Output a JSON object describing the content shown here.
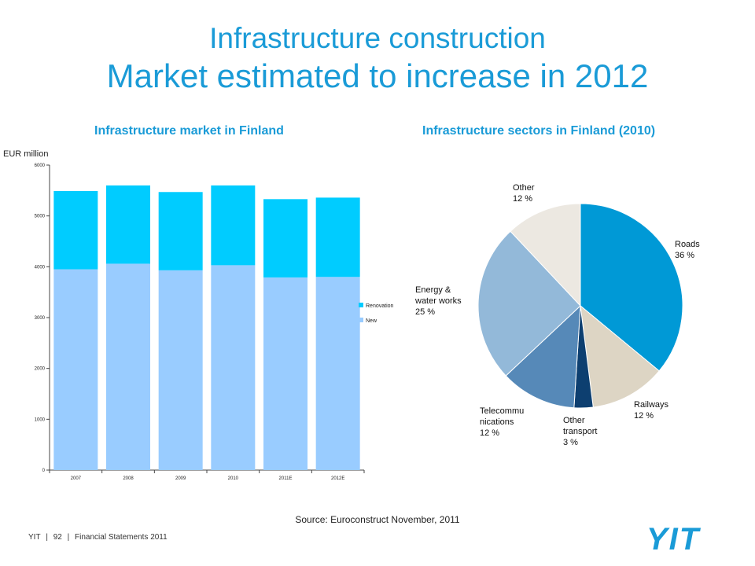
{
  "slide": {
    "title_line1": "Infrastructure construction",
    "title_line2": "Market estimated to increase in 2012",
    "source": "Source: Euroconstruct November, 2011",
    "footer": {
      "company": "YIT",
      "sep1": "|",
      "page": "92",
      "sep2": "|",
      "doc": "Financial Statements 2011"
    },
    "logo_text": "YIT",
    "colors": {
      "accent": "#1a9bd7",
      "new": "#99ccff",
      "renovation": "#00ccff"
    }
  },
  "chart_data": [
    {
      "type": "bar",
      "stacked": true,
      "title": "Infrastructure market in Finland",
      "ylabel": "EUR million",
      "categories": [
        "2007",
        "2008",
        "2009",
        "2010",
        "2011E",
        "2012E"
      ],
      "series": [
        {
          "name": "New",
          "values": [
            3950,
            4060,
            3930,
            4030,
            3790,
            3800
          ],
          "color": "#99ccff"
        },
        {
          "name": "Renovation",
          "values": [
            1540,
            1540,
            1540,
            1570,
            1540,
            1560
          ],
          "color": "#00ccff"
        }
      ],
      "ylim": [
        0,
        6000
      ],
      "yticks": [
        "0",
        "1000",
        "2000",
        "3000",
        "4000",
        "5000",
        "6000"
      ],
      "grid": false,
      "legend": "right",
      "legend_order": [
        "Renovation",
        "New"
      ]
    },
    {
      "type": "pie",
      "title": "Infrastructure sectors in Finland (2010)",
      "slices": [
        {
          "label": "Roads",
          "value": 36,
          "display": "36 %",
          "color": "#0099d6"
        },
        {
          "label": "Railways",
          "value": 12,
          "display": "12 %",
          "color": "#ddd5c4"
        },
        {
          "label": "Other transport",
          "value": 3,
          "display": "3 %",
          "color": "#0d3f70"
        },
        {
          "label": "Telecommunications",
          "value": 12,
          "display": "12 %",
          "color": "#5689b8"
        },
        {
          "label": "Energy & water works",
          "value": 25,
          "display": "25 %",
          "color": "#93b9d9"
        },
        {
          "label": "Other",
          "value": 12,
          "display": "12 %",
          "color": "#ece8e1"
        }
      ],
      "label_lines": {
        "Roads": [
          "Roads",
          "36 %"
        ],
        "Railways": [
          "Railways",
          "12 %"
        ],
        "Other transport": [
          "Other",
          "transport",
          "3 %"
        ],
        "Telecommunications": [
          "Telecommu",
          "nications",
          "12 %"
        ],
        "Energy & water works": [
          "Energy &",
          "water works",
          "25 %"
        ],
        "Other": [
          "Other",
          "12 %"
        ]
      }
    }
  ]
}
